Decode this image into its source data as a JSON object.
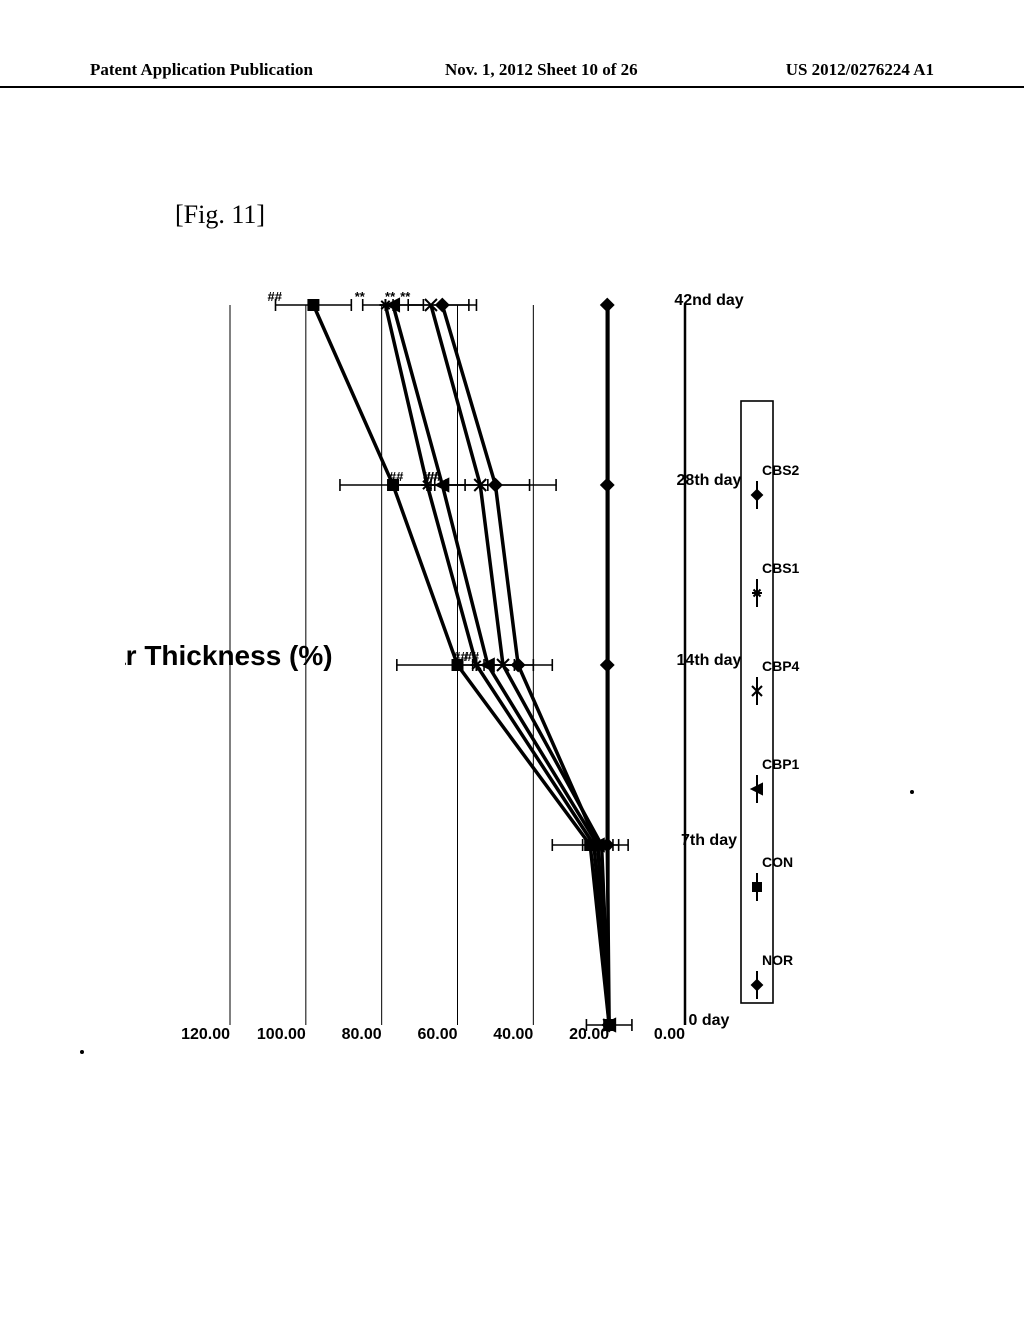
{
  "header": {
    "left": "Patent Application Publication",
    "mid": "Nov. 1, 2012  Sheet 10 of 26",
    "right": "US 2012/0276224 A1"
  },
  "figure_label": "[Fig. 11]",
  "chart": {
    "type": "line",
    "title": "Ear Thickness (%)",
    "title_fontsize": 28,
    "title_fontweight": "bold",
    "rotated": true,
    "background_color": "#ffffff",
    "axis_color": "#000000",
    "line_color": "#000000",
    "line_width": 3.5,
    "errorbar_width": 1.6,
    "tick_fontsize": 16,
    "tick_fontweight": "bold",
    "x_categories": [
      "0 day",
      "7th day",
      "14th day",
      "28th day",
      "42nd day"
    ],
    "ylim": [
      0,
      120
    ],
    "ytick_step": 20,
    "y_ticks": [
      "0.00",
      "20.00",
      "40.00",
      "60.00",
      "80.00",
      "100.00",
      "120.00"
    ],
    "series": [
      {
        "name": "NOR",
        "marker": "diamond",
        "values": [
          20,
          20.5,
          20.5,
          20.5,
          20.5
        ],
        "err": [
          6,
          3,
          0,
          0,
          0
        ]
      },
      {
        "name": "CON",
        "marker": "square",
        "values": [
          20,
          25,
          60,
          77,
          98
        ],
        "err": [
          0,
          10,
          16,
          14,
          10
        ],
        "sig": [
          "",
          "",
          "",
          "",
          "##"
        ]
      },
      {
        "name": "CBP1",
        "marker": "triangle",
        "values": [
          20,
          23,
          52,
          64,
          77
        ],
        "err": [
          0,
          0,
          7,
          12,
          8
        ],
        "sig": [
          "",
          "",
          "##",
          "##",
          "**"
        ]
      },
      {
        "name": "CBP4",
        "marker": "x",
        "values": [
          20,
          22,
          48,
          54,
          67
        ],
        "err": [
          0,
          0,
          8,
          13,
          10
        ],
        "sig": [
          "",
          "",
          "##",
          "##",
          "**"
        ]
      },
      {
        "name": "CBS1",
        "marker": "asterisk",
        "values": [
          20,
          24,
          55,
          68,
          79
        ],
        "err": [
          0,
          0,
          0,
          10,
          0
        ],
        "sig": [
          "",
          "",
          "",
          "",
          ""
        ]
      },
      {
        "name": "CBS2",
        "marker": "diamond",
        "values": [
          20,
          23,
          44,
          50,
          64
        ],
        "err": [
          0,
          4,
          9,
          16,
          9
        ],
        "sig": [
          "",
          "",
          "",
          "##",
          "**"
        ]
      }
    ],
    "legend": {
      "items": [
        "NOR",
        "CON",
        "CBP1",
        "CBP4",
        "CBS1",
        "CBS2"
      ],
      "border": true,
      "fontsize": 14
    }
  }
}
